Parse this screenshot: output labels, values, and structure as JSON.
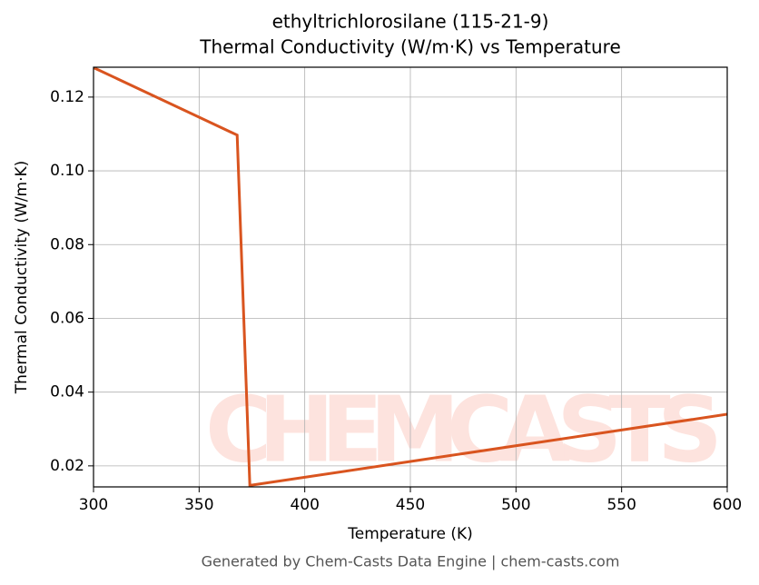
{
  "chart_data": {
    "type": "line",
    "title": "ethyltrichlorosilane (115-21-9)",
    "subtitle": "Thermal Conductivity (W/m·K) vs Temperature",
    "x_label": "Temperature (K)",
    "y_label": "Thermal Conductivity (W/m·K)",
    "watermark": "CHEMCASTS",
    "footer": "Generated by Chem-Casts Data Engine | chem-casts.com",
    "x": [
      300,
      368,
      374,
      600
    ],
    "series": [
      {
        "name": "Thermal Conductivity",
        "color": "#d9541f",
        "values": [
          0.128,
          0.1097,
          0.0147,
          0.034
        ]
      }
    ],
    "xlim": [
      300,
      600
    ],
    "xticks": [
      300,
      350,
      400,
      450,
      500,
      550,
      600
    ],
    "ylim": [
      0.0143,
      0.1281
    ],
    "yticks": [
      0.02,
      0.04,
      0.06,
      0.08,
      {
        "value": 0.1,
        "label": "0.10"
      },
      0.12
    ],
    "grid": true
  }
}
